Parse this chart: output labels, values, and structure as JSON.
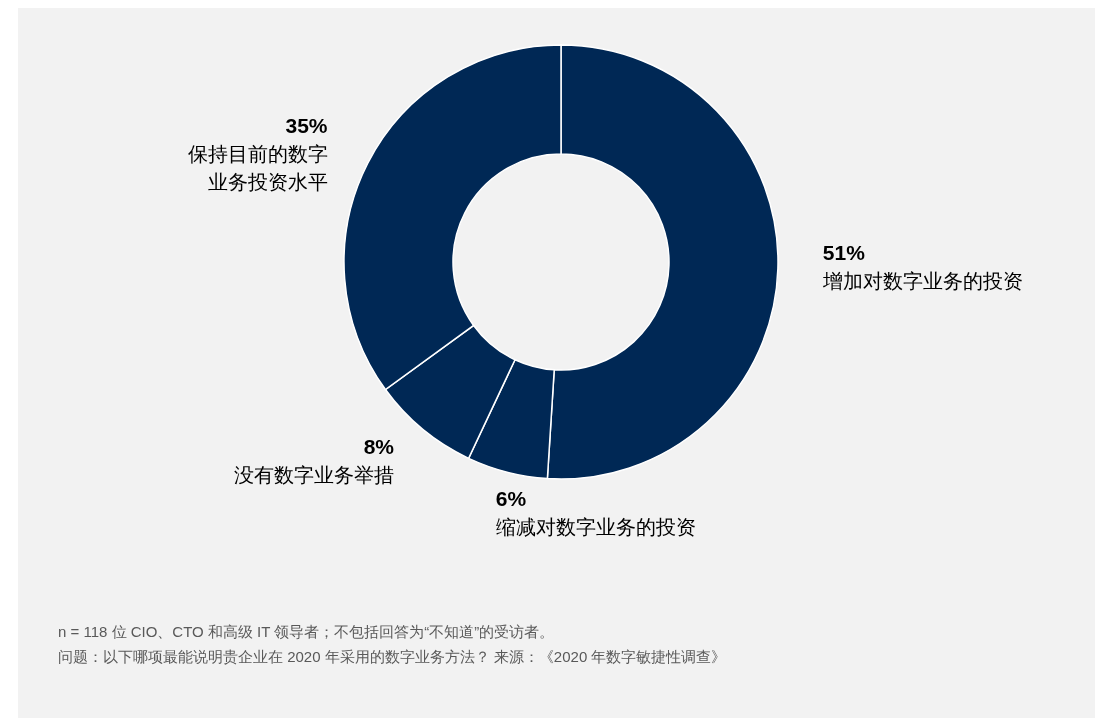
{
  "chart_data": {
    "type": "donut",
    "categories": [
      "增加对数字业务的投资",
      "缩减对数字业务的投资",
      "没有数字业务举措",
      "保持目前的数字业务投资水平"
    ],
    "values": [
      51,
      6,
      8,
      35
    ],
    "colors": [
      "#002855",
      "#002855",
      "#002855",
      "#002855"
    ],
    "value_labels": [
      "51%",
      "6%",
      "8%",
      "35%"
    ],
    "annotations": [
      "n = 118 位 CIO、CTO 和高级 IT 领导者；不包括回答为“不知道”的受访者。",
      "问题：以下哪项最能说明贵企业在 2020 年采用的数字业务方法？  来源：《2020 年数字敏捷性调查》"
    ]
  }
}
